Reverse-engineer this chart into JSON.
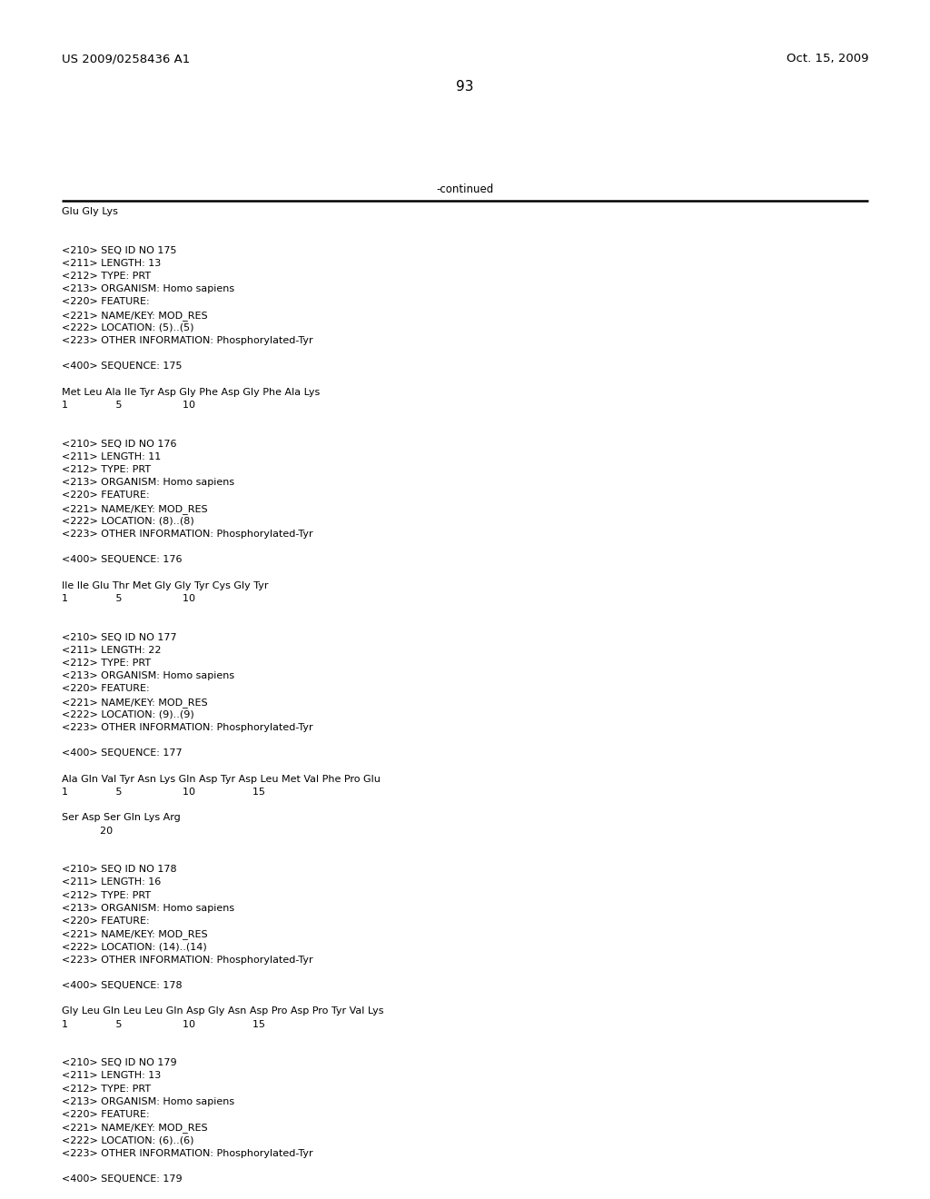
{
  "header_left": "US 2009/0258436 A1",
  "header_right": "Oct. 15, 2009",
  "page_number": "93",
  "continued_text": "-continued",
  "background_color": "#ffffff",
  "text_color": "#000000",
  "font_size": 8.0,
  "mono_font": "Courier New",
  "header_font_size": 9.5,
  "page_num_font_size": 11,
  "lines": [
    "Glu Gly Lys",
    "",
    "",
    "<210> SEQ ID NO 175",
    "<211> LENGTH: 13",
    "<212> TYPE: PRT",
    "<213> ORGANISM: Homo sapiens",
    "<220> FEATURE:",
    "<221> NAME/KEY: MOD_RES",
    "<222> LOCATION: (5)..(5)",
    "<223> OTHER INFORMATION: Phosphorylated-Tyr",
    "",
    "<400> SEQUENCE: 175",
    "",
    "Met Leu Ala Ile Tyr Asp Gly Phe Asp Gly Phe Ala Lys",
    "1               5                   10",
    "",
    "",
    "<210> SEQ ID NO 176",
    "<211> LENGTH: 11",
    "<212> TYPE: PRT",
    "<213> ORGANISM: Homo sapiens",
    "<220> FEATURE:",
    "<221> NAME/KEY: MOD_RES",
    "<222> LOCATION: (8)..(8)",
    "<223> OTHER INFORMATION: Phosphorylated-Tyr",
    "",
    "<400> SEQUENCE: 176",
    "",
    "Ile Ile Glu Thr Met Gly Gly Tyr Cys Gly Tyr",
    "1               5                   10",
    "",
    "",
    "<210> SEQ ID NO 177",
    "<211> LENGTH: 22",
    "<212> TYPE: PRT",
    "<213> ORGANISM: Homo sapiens",
    "<220> FEATURE:",
    "<221> NAME/KEY: MOD_RES",
    "<222> LOCATION: (9)..(9)",
    "<223> OTHER INFORMATION: Phosphorylated-Tyr",
    "",
    "<400> SEQUENCE: 177",
    "",
    "Ala Gln Val Tyr Asn Lys Gln Asp Tyr Asp Leu Met Val Phe Pro Glu",
    "1               5                   10                  15",
    "",
    "Ser Asp Ser Gln Lys Arg",
    "            20",
    "",
    "",
    "<210> SEQ ID NO 178",
    "<211> LENGTH: 16",
    "<212> TYPE: PRT",
    "<213> ORGANISM: Homo sapiens",
    "<220> FEATURE:",
    "<221> NAME/KEY: MOD_RES",
    "<222> LOCATION: (14)..(14)",
    "<223> OTHER INFORMATION: Phosphorylated-Tyr",
    "",
    "<400> SEQUENCE: 178",
    "",
    "Gly Leu Gln Leu Leu Gln Asp Gly Asn Asp Pro Asp Pro Tyr Val Lys",
    "1               5                   10                  15",
    "",
    "",
    "<210> SEQ ID NO 179",
    "<211> LENGTH: 13",
    "<212> TYPE: PRT",
    "<213> ORGANISM: Homo sapiens",
    "<220> FEATURE:",
    "<221> NAME/KEY: MOD_RES",
    "<222> LOCATION: (6)..(6)",
    "<223> OTHER INFORMATION: Phosphorylated-Tyr",
    "",
    "<400> SEQUENCE: 179"
  ]
}
